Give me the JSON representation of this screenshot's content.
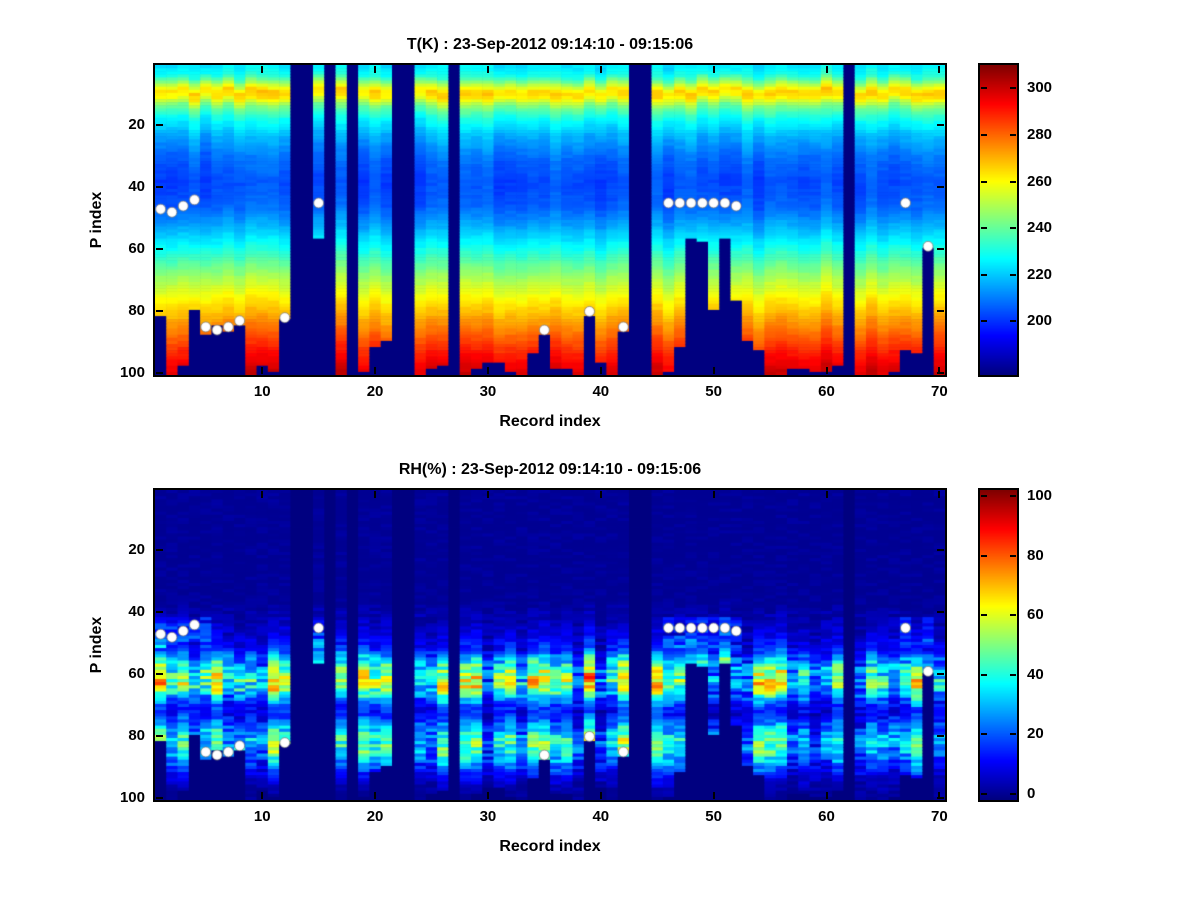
{
  "figure": {
    "background": "#ffffff",
    "marker_color": "#ffffff"
  },
  "chart_data": [
    {
      "id": "temperature",
      "type": "heatmap",
      "title": "T(K) : 23-Sep-2012 09:14:10 - 09:15:06",
      "xlabel": "Record index",
      "ylabel": "P index",
      "colormap": "jet",
      "n_records": 70,
      "n_levels": 100,
      "x_ticks": [
        10,
        20,
        30,
        40,
        50,
        60,
        70
      ],
      "y_ticks": [
        20,
        40,
        60,
        80,
        100
      ],
      "y_axis_reversed": true,
      "color_axis": {
        "min": 177,
        "max": 310,
        "ticks": [
          200,
          220,
          240,
          260,
          280,
          300
        ]
      },
      "value_profile_points": [
        [
          1,
          224
        ],
        [
          4,
          230
        ],
        [
          7,
          252
        ],
        [
          9,
          266
        ],
        [
          11,
          262
        ],
        [
          14,
          242
        ],
        [
          18,
          228
        ],
        [
          24,
          216
        ],
        [
          30,
          208
        ],
        [
          38,
          203
        ],
        [
          46,
          206
        ],
        [
          52,
          215
        ],
        [
          58,
          226
        ],
        [
          64,
          238
        ],
        [
          70,
          250
        ],
        [
          76,
          261
        ],
        [
          82,
          271
        ],
        [
          88,
          281
        ],
        [
          94,
          291
        ],
        [
          100,
          299
        ]
      ],
      "column_offset_amplitude": 6,
      "cell_noise_amplitude": 3,
      "missing_record_columns": [
        13,
        14,
        16,
        18,
        22,
        23,
        27,
        43,
        44,
        62
      ],
      "surface_blank_from_level": {
        "1": 82,
        "4": 80,
        "5": 88,
        "6": 85,
        "7": 87,
        "8": 85,
        "12": 83,
        "15": 57,
        "20": 92,
        "21": 90,
        "34": 94,
        "35": 88,
        "39": 82,
        "42": 87,
        "47": 92,
        "48": 57,
        "49": 58,
        "50": 80,
        "51": 57,
        "52": 77,
        "53": 90,
        "54": 93,
        "67": 93,
        "68": 94,
        "69": 60
      },
      "markers": [
        [
          1,
          47
        ],
        [
          2,
          48
        ],
        [
          3,
          46
        ],
        [
          4,
          44
        ],
        [
          5,
          85
        ],
        [
          6,
          86
        ],
        [
          7,
          85
        ],
        [
          8,
          83
        ],
        [
          12,
          82
        ],
        [
          15,
          45
        ],
        [
          35,
          86
        ],
        [
          39,
          80
        ],
        [
          42,
          85
        ],
        [
          46,
          45
        ],
        [
          47,
          45
        ],
        [
          48,
          45
        ],
        [
          49,
          45
        ],
        [
          50,
          45
        ],
        [
          51,
          45
        ],
        [
          52,
          46
        ],
        [
          67,
          45
        ],
        [
          69,
          59
        ]
      ]
    },
    {
      "id": "relative-humidity",
      "type": "heatmap",
      "title": "RH(%) : 23-Sep-2012 09:14:10 - 09:15:06",
      "xlabel": "Record index",
      "ylabel": "P index",
      "colormap": "jet",
      "n_records": 70,
      "n_levels": 100,
      "x_ticks": [
        10,
        20,
        30,
        40,
        50,
        60,
        70
      ],
      "y_ticks": [
        20,
        40,
        60,
        80,
        100
      ],
      "y_axis_reversed": true,
      "color_axis": {
        "min": -2,
        "max": 102,
        "ticks": [
          0,
          20,
          40,
          60,
          80,
          100
        ]
      },
      "value_profile_points": [
        [
          1,
          0
        ],
        [
          36,
          0
        ],
        [
          42,
          3
        ],
        [
          48,
          7
        ],
        [
          52,
          13
        ],
        [
          56,
          30
        ],
        [
          60,
          44
        ],
        [
          63,
          47
        ],
        [
          66,
          34
        ],
        [
          70,
          14
        ],
        [
          73,
          11
        ],
        [
          77,
          24
        ],
        [
          81,
          36
        ],
        [
          85,
          33
        ],
        [
          89,
          20
        ],
        [
          93,
          8
        ],
        [
          97,
          2
        ],
        [
          100,
          0
        ]
      ],
      "column_scale_range": [
        0.45,
        1.6
      ],
      "cell_noise_base": 4,
      "cell_noise_scale": 0.3,
      "cloud_bump": {
        "records": [
          1,
          2,
          3,
          4,
          5,
          15,
          46,
          47,
          48,
          49,
          50,
          51,
          52,
          67,
          69
        ],
        "level_range": [
          42,
          51
        ],
        "amplitude": 17
      },
      "missing_record_columns": [
        13,
        14,
        16,
        18,
        22,
        23,
        27,
        43,
        44,
        62
      ],
      "surface_blank_from_level": {
        "1": 82,
        "4": 80,
        "5": 88,
        "6": 85,
        "7": 87,
        "8": 85,
        "12": 83,
        "15": 57,
        "20": 92,
        "21": 90,
        "34": 94,
        "35": 88,
        "39": 82,
        "42": 87,
        "47": 92,
        "48": 57,
        "49": 58,
        "50": 80,
        "51": 57,
        "52": 77,
        "53": 90,
        "54": 93,
        "67": 93,
        "68": 94,
        "69": 60
      },
      "markers": [
        [
          1,
          47
        ],
        [
          2,
          48
        ],
        [
          3,
          46
        ],
        [
          4,
          44
        ],
        [
          5,
          85
        ],
        [
          6,
          86
        ],
        [
          7,
          85
        ],
        [
          8,
          83
        ],
        [
          12,
          82
        ],
        [
          15,
          45
        ],
        [
          35,
          86
        ],
        [
          39,
          80
        ],
        [
          42,
          85
        ],
        [
          46,
          45
        ],
        [
          47,
          45
        ],
        [
          48,
          45
        ],
        [
          49,
          45
        ],
        [
          50,
          45
        ],
        [
          51,
          45
        ],
        [
          52,
          46
        ],
        [
          67,
          45
        ],
        [
          69,
          59
        ]
      ]
    }
  ]
}
